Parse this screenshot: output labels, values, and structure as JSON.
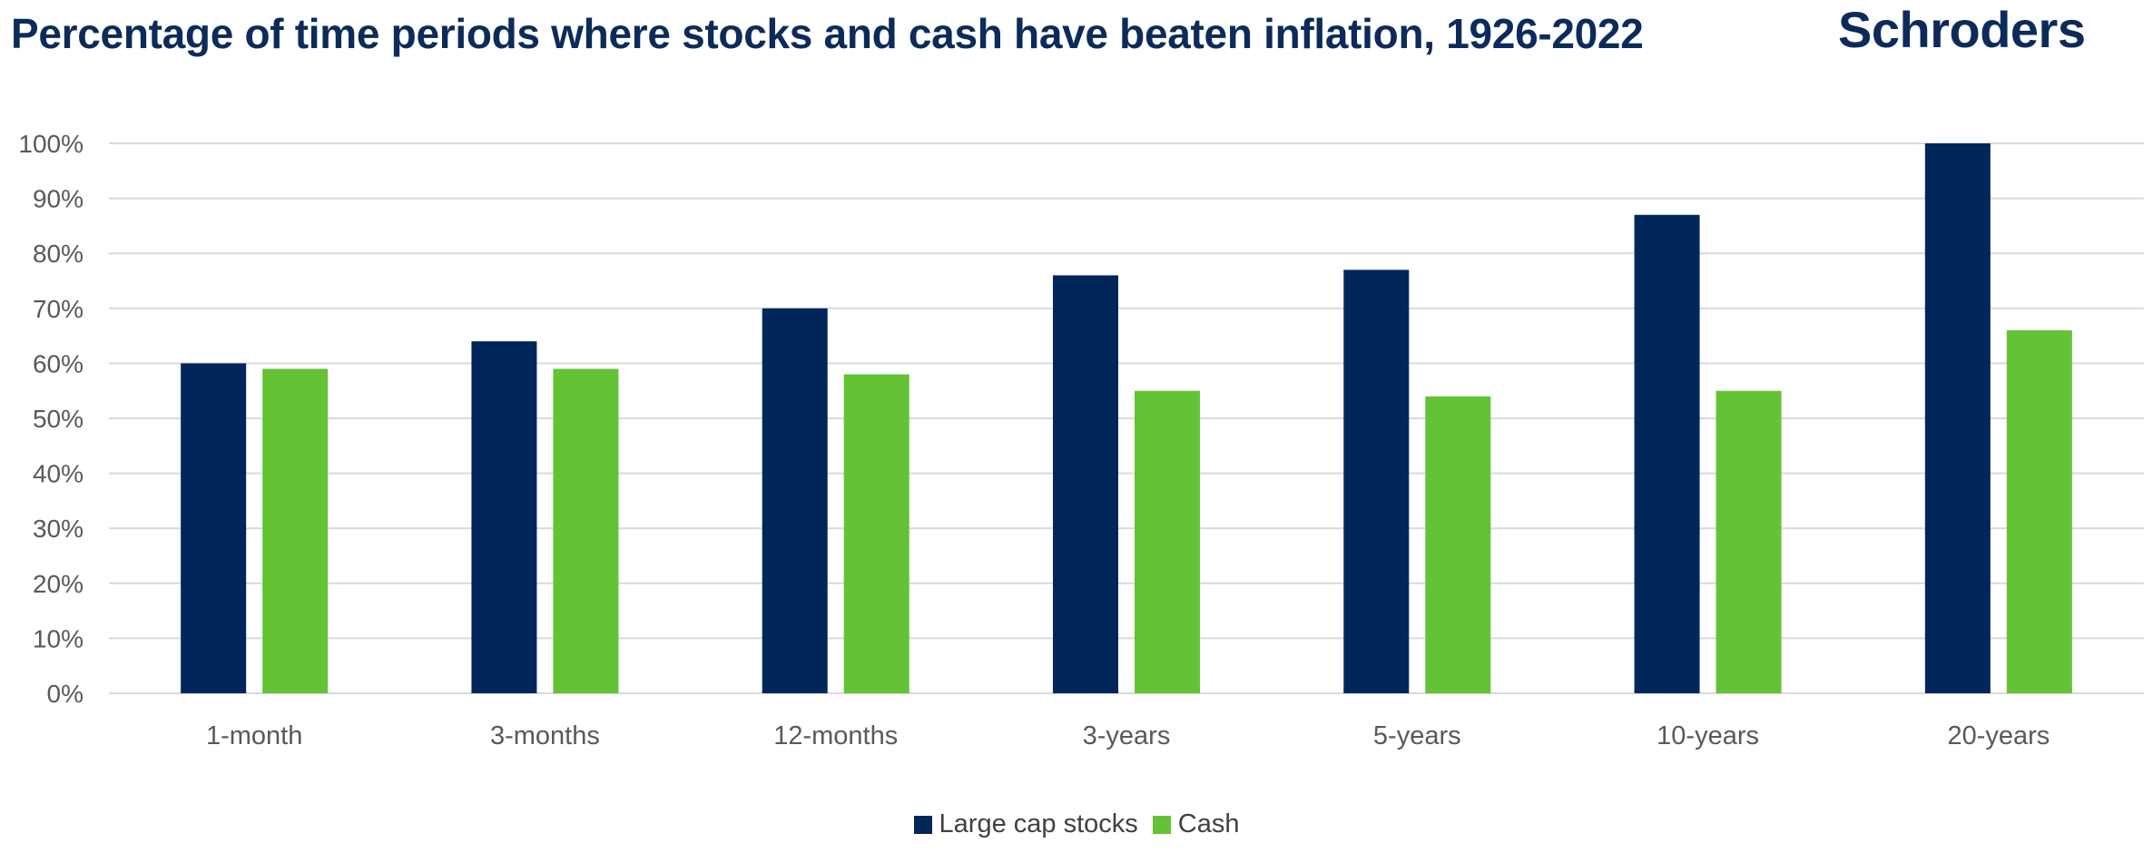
{
  "title": "Percentage of time periods where stocks and cash have beaten inflation, 1926-2022",
  "logo_text": "Schroders",
  "colors": {
    "title": "#0c2b5b",
    "stocks": "#00265a",
    "cash": "#63c334",
    "grid": "#d9d9d9",
    "tick_text": "#595959"
  },
  "chart_data": {
    "type": "bar",
    "categories": [
      "1-month",
      "3-months",
      "12-months",
      "3-years",
      "5-years",
      "10-years",
      "20-years"
    ],
    "series": [
      {
        "name": "Large cap stocks",
        "values": [
          60,
          64,
          70,
          76,
          77,
          87,
          100
        ]
      },
      {
        "name": "Cash",
        "values": [
          59,
          59,
          58,
          55,
          54,
          55,
          66
        ]
      }
    ],
    "ylim": [
      0,
      100
    ],
    "yticks": [
      "0%",
      "10%",
      "20%",
      "30%",
      "40%",
      "50%",
      "60%",
      "70%",
      "80%",
      "90%",
      "100%"
    ],
    "grid": true,
    "legend_position": "bottom-center"
  }
}
